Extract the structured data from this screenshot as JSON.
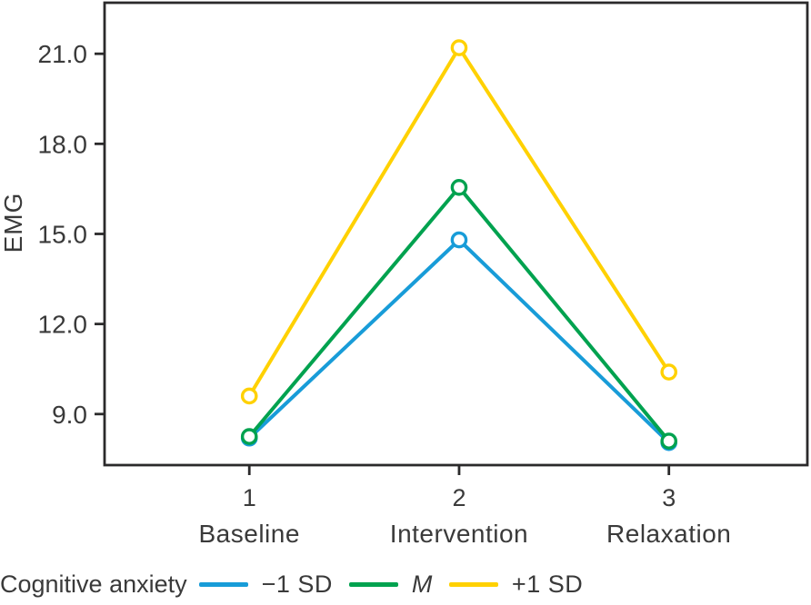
{
  "chart_data": {
    "type": "line",
    "title": "",
    "xlabel": "",
    "ylabel": "EMG",
    "x": [
      1,
      2,
      3
    ],
    "x_tick_labels": [
      "1",
      "2",
      "3"
    ],
    "categories": [
      "Baseline",
      "Intervention",
      "Relaxation"
    ],
    "y_ticks": [
      {
        "value": 9,
        "label": "9.0"
      },
      {
        "value": 12,
        "label": "12.0"
      },
      {
        "value": 15,
        "label": "15.0"
      },
      {
        "value": 18,
        "label": "18.0"
      },
      {
        "value": 21,
        "label": "21.0"
      }
    ],
    "xlim": [
      0.31,
      3.66
    ],
    "ylim": [
      7.3,
      22.7
    ],
    "grid": false,
    "legend_position": "bottom",
    "marker": "open-circle",
    "series": [
      {
        "name": "−1 SD",
        "color": "#189CD8",
        "values": [
          8.2,
          14.8,
          8.05
        ]
      },
      {
        "name": "M",
        "color": "#00A24F",
        "values": [
          8.25,
          16.55,
          8.1
        ]
      },
      {
        "name": "+1 SD",
        "color": "#FFD100",
        "values": [
          9.6,
          21.2,
          10.4
        ]
      }
    ],
    "axis_color": "#2b2a2b",
    "marker_fill": "#ffffff"
  },
  "legend": {
    "title": "Cognitive anxiety"
  }
}
